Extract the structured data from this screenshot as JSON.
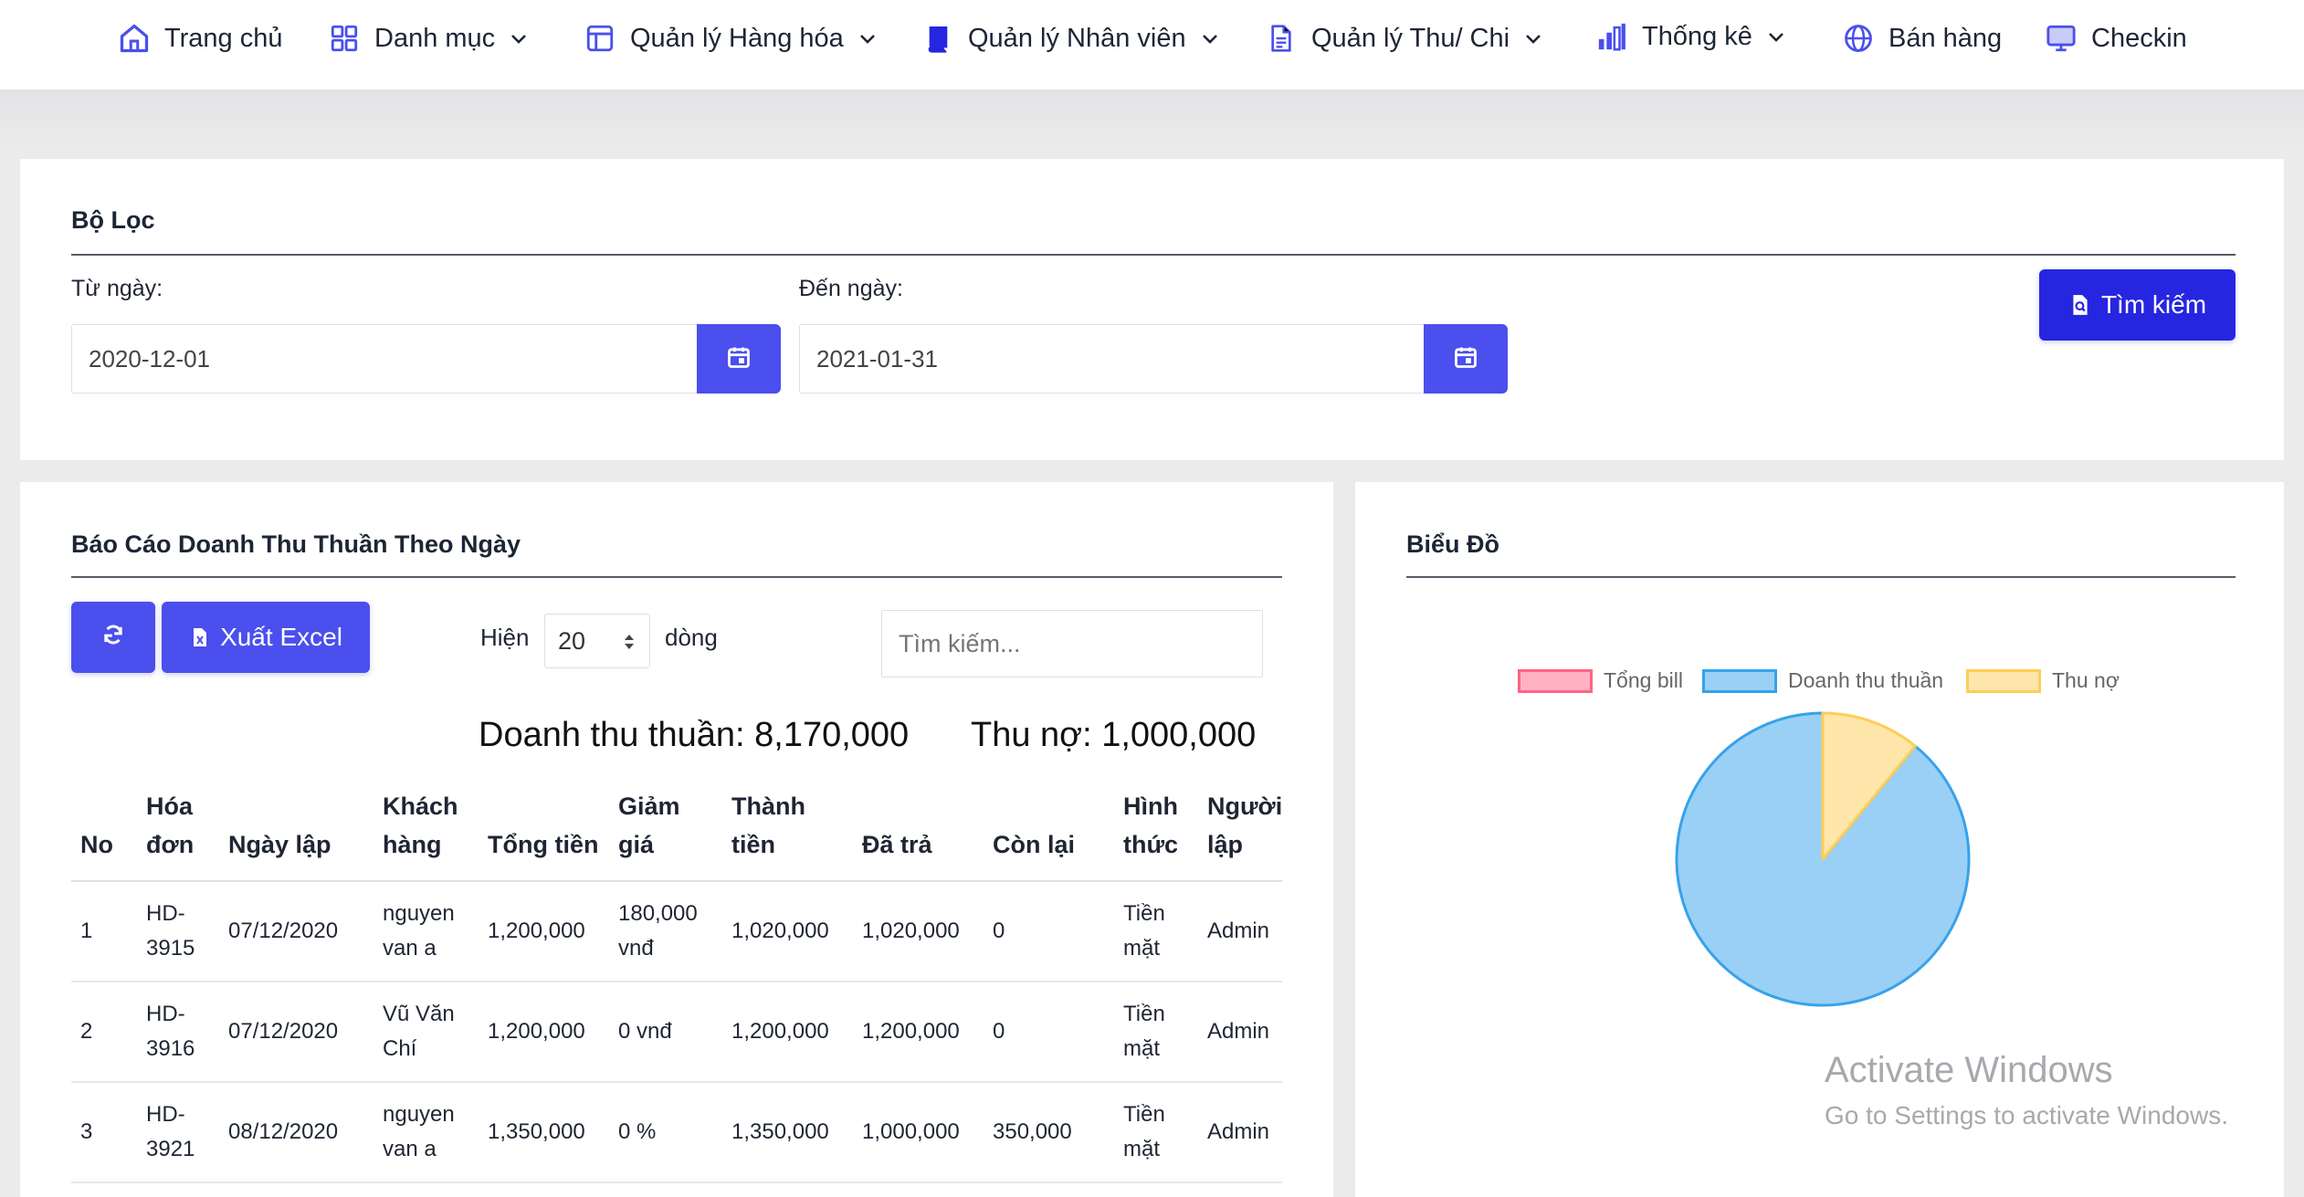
{
  "nav": {
    "items": [
      {
        "label": "Trang chủ",
        "icon": "home-icon",
        "dropdown": false
      },
      {
        "label": "Danh mục",
        "icon": "grid-icon",
        "dropdown": true
      },
      {
        "label": "Quản lý Hàng hóa",
        "icon": "layout-icon",
        "dropdown": true
      },
      {
        "label": "Quản lý Nhân viên",
        "icon": "book-icon",
        "dropdown": true
      },
      {
        "label": "Quản lý Thu/ Chi",
        "icon": "document-icon",
        "dropdown": true
      },
      {
        "label": "Thống kê",
        "icon": "bar-chart-icon",
        "dropdown": true
      },
      {
        "label": "Bán hàng",
        "icon": "globe-icon",
        "dropdown": false
      },
      {
        "label": "Checkin",
        "icon": "monitor-icon",
        "dropdown": false
      }
    ]
  },
  "filter": {
    "title": "Bộ Lọc",
    "from_label": "Từ ngày:",
    "from_value": "2020-12-01",
    "to_label": "Đến ngày:",
    "to_value": "2021-01-31",
    "search_button": "Tìm kiếm"
  },
  "report": {
    "title": "Báo Cáo Doanh Thu Thuần Theo Ngày",
    "export_button": "Xuất Excel",
    "show_label": "Hiện",
    "page_size": "20",
    "rows_label": "dòng",
    "search_placeholder": "Tìm kiếm...",
    "summary_revenue": "Doanh thu thuần: 8,170,000",
    "summary_debt": "Thu nợ: 1,000,000",
    "columns": [
      "No",
      "Hóa đơn",
      "Ngày lập",
      "Khách hàng",
      "Tổng tiền",
      "Giảm giá",
      "Thành tiền",
      "Đã trả",
      "Còn lại",
      "Hình thức",
      "Người lập"
    ],
    "rows": [
      [
        "1",
        "HD-3915",
        "07/12/2020",
        "nguyen van a",
        "1,200,000",
        "180,000 vnđ",
        "1,020,000",
        "1,020,000",
        "0",
        "Tiền mặt",
        "Admin"
      ],
      [
        "2",
        "HD-3916",
        "07/12/2020",
        "Vũ Văn Chí",
        "1,200,000",
        "0 vnđ",
        "1,200,000",
        "1,200,000",
        "0",
        "Tiền mặt",
        "Admin"
      ],
      [
        "3",
        "HD-3921",
        "08/12/2020",
        "nguyen van a",
        "1,350,000",
        "0 %",
        "1,350,000",
        "1,000,000",
        "350,000",
        "Tiền mặt",
        "Admin"
      ]
    ]
  },
  "chart_panel": {
    "title": "Biểu Đồ"
  },
  "chart_data": {
    "type": "pie",
    "labels": [
      "Tổng bill",
      "Doanh thu thuần",
      "Thu nợ"
    ],
    "values": [
      0,
      8170000,
      1000000
    ],
    "colors": {
      "fill": [
        "#ffb1c1",
        "#9ad0f5",
        "#ffe6aa"
      ],
      "border": [
        "#ff6384",
        "#36a2eb",
        "#ffcd56"
      ]
    },
    "legend": "top"
  },
  "watermark": {
    "line1": "Activate Windows",
    "line2": "Go to Settings to activate Windows."
  }
}
